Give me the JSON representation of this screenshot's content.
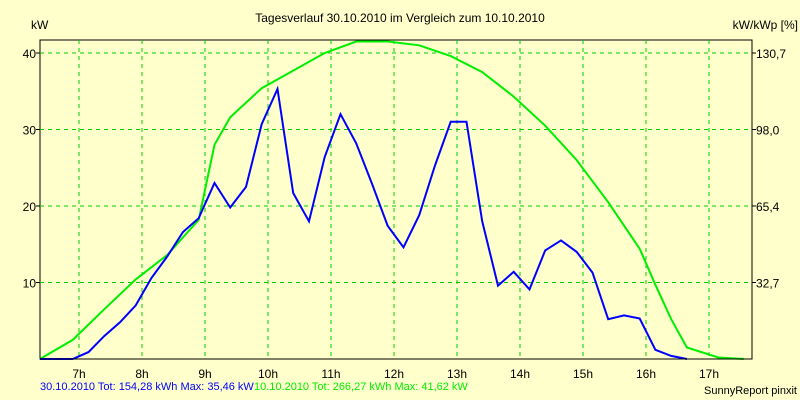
{
  "chart_data": {
    "type": "line",
    "title": "Tagesverlauf 30.10.2010 im Vergleich zum 10.10.2010",
    "ylabel": "kW",
    "ylabel_right": "kW/kWp [%]",
    "xlim": [
      6.38,
      17.7
    ],
    "ylim": [
      0,
      41.6
    ],
    "x_ticks": [
      "7h",
      "8h",
      "9h",
      "10h",
      "11h",
      "12h",
      "13h",
      "14h",
      "15h",
      "16h",
      "17h"
    ],
    "y_ticks": [
      10,
      20,
      30,
      40
    ],
    "y_ticks_right": [
      "32,7",
      "65,4",
      "98,0",
      "130,7"
    ],
    "grid": true,
    "series": [
      {
        "name": "30.10.2010",
        "color": "#0000ff",
        "x": [
          6.38,
          6.9,
          7.15,
          7.4,
          7.65,
          7.9,
          8.15,
          8.4,
          8.65,
          8.9,
          9.15,
          9.4,
          9.65,
          9.9,
          10.15,
          10.4,
          10.65,
          10.9,
          11.15,
          11.4,
          11.65,
          11.9,
          12.15,
          12.4,
          12.65,
          12.9,
          13.15,
          13.4,
          13.65,
          13.9,
          14.15,
          14.4,
          14.65,
          14.9,
          15.15,
          15.4,
          15.65,
          15.9,
          16.15,
          16.4,
          16.65
        ],
        "values": [
          0,
          0,
          0.9,
          3,
          4.8,
          7,
          10.6,
          13.4,
          16.6,
          18.4,
          23,
          19.8,
          22.5,
          30.7,
          35.3,
          21.7,
          18,
          26.4,
          32,
          28.2,
          22.9,
          17.4,
          14.6,
          18.8,
          25.3,
          31,
          31,
          18,
          9.6,
          11.4,
          9.1,
          14.2,
          15.5,
          14,
          11.3,
          5.2,
          5.7,
          5.3,
          1.2,
          0.4,
          0
        ]
      },
      {
        "name": "10.10.2010",
        "color": "#00ee00",
        "x": [
          6.38,
          6.9,
          7.4,
          7.9,
          8.4,
          8.9,
          9.15,
          9.4,
          9.9,
          10.4,
          10.9,
          11.4,
          11.9,
          12.4,
          12.9,
          13.4,
          13.9,
          14.4,
          14.9,
          15.4,
          15.9,
          16.15,
          16.4,
          16.65,
          17.15,
          17.55
        ],
        "values": [
          0,
          2.5,
          6.5,
          10.4,
          13.6,
          18.2,
          28,
          31.6,
          35.4,
          37.7,
          40,
          41.5,
          41.5,
          41,
          39.6,
          37.5,
          34.3,
          30.5,
          26,
          20.5,
          14.4,
          9.7,
          5.2,
          1.5,
          0.2,
          0
        ]
      }
    ],
    "legend": {
      "blue_text": "30.10.2010 Tot: 154,28 kWh Max: 35,46 kW",
      "green_text": "10.10.2010 Tot: 266,27 kWh Max: 41,62 kW"
    },
    "footer": "SunnyReport pinxit"
  }
}
